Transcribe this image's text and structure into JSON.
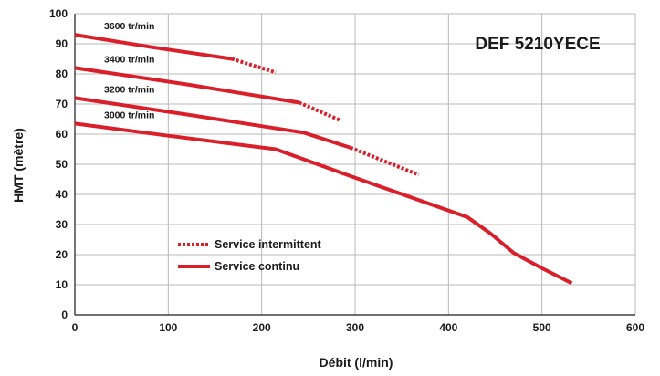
{
  "chart_data": {
    "type": "line",
    "title": "DEF 5210YECE",
    "xlabel": "Débit (l/min)",
    "ylabel": "HMT (mètre)",
    "xlim": [
      0,
      600
    ],
    "ylim": [
      0,
      100
    ],
    "x_ticks": [
      "0",
      "100",
      "200",
      "300",
      "400",
      "500",
      "600"
    ],
    "y_ticks": [
      "0",
      "10",
      "20",
      "30",
      "40",
      "50",
      "60",
      "70",
      "80",
      "90",
      "100"
    ],
    "grid": true,
    "line_color": "#d9202a",
    "legend": {
      "placement": "bottom-left",
      "items": [
        {
          "label": "Service intermittent",
          "style": "dashed"
        },
        {
          "label": "Service continu",
          "style": "solid"
        }
      ]
    },
    "series": [
      {
        "name": "3600 tr/min",
        "continuous": [
          [
            0,
            93
          ],
          [
            80,
            89
          ],
          [
            168,
            85
          ]
        ],
        "intermittent": [
          [
            168,
            85
          ],
          [
            215,
            80.5
          ]
        ]
      },
      {
        "name": "3400 tr/min",
        "continuous": [
          [
            0,
            82
          ],
          [
            120,
            76.5
          ],
          [
            240,
            70.5
          ]
        ],
        "intermittent": [
          [
            240,
            70.5
          ],
          [
            285,
            64.5
          ]
        ]
      },
      {
        "name": "3200 tr/min",
        "continuous": [
          [
            0,
            72
          ],
          [
            120,
            66.5
          ],
          [
            245,
            60.5
          ],
          [
            295,
            55.5
          ]
        ],
        "intermittent": [
          [
            295,
            55.5
          ],
          [
            368,
            46.5
          ]
        ]
      },
      {
        "name": "3000 tr/min",
        "continuous": [
          [
            0,
            63.5
          ],
          [
            100,
            59.5
          ],
          [
            215,
            55
          ],
          [
            300,
            45.5
          ],
          [
            420,
            32.5
          ],
          [
            445,
            27
          ],
          [
            470,
            20.5
          ],
          [
            500,
            15.5
          ],
          [
            532,
            10.5
          ]
        ],
        "intermittent": []
      }
    ]
  }
}
